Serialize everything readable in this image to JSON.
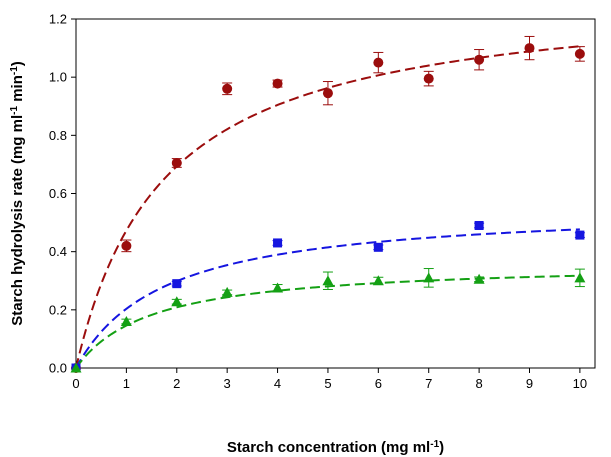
{
  "chart_data": {
    "type": "scatter",
    "xlabel": "Starch concentration (mg ml",
    "xlabel_sup": "-1",
    "xlabel_end": ")",
    "ylabel_main": "Starch hydrolysis rate (mg ml",
    "ylabel_sup1": "-1",
    "ylabel_mid": " min",
    "ylabel_sup2": "-1",
    "ylabel_end": ")",
    "xlim": [
      0,
      10.3
    ],
    "ylim": [
      0,
      1.2
    ],
    "xticks": [
      0,
      1,
      2,
      3,
      4,
      5,
      6,
      7,
      8,
      9,
      10
    ],
    "yticks": [
      0.0,
      0.2,
      0.4,
      0.6,
      0.8,
      1.0,
      1.2
    ],
    "ytick_labels": [
      "0.0",
      "0.2",
      "0.4",
      "0.6",
      "0.8",
      "1.0",
      "1.2"
    ],
    "grid": false,
    "series": [
      {
        "marker": "circle",
        "color": "#9b0d0d",
        "x": [
          0,
          1,
          2,
          3,
          4,
          5,
          6,
          7,
          8,
          9,
          10
        ],
        "y": [
          0.0,
          0.42,
          0.705,
          0.96,
          0.978,
          0.945,
          1.05,
          0.995,
          1.06,
          1.1,
          1.08
        ],
        "err": [
          0,
          0.02,
          0.015,
          0.02,
          0.012,
          0.04,
          0.035,
          0.025,
          0.035,
          0.04,
          0.025
        ],
        "fit": {
          "vmax": 1.3,
          "km": 1.75
        }
      },
      {
        "marker": "square",
        "color": "#1515e0",
        "x": [
          0,
          2,
          4,
          6,
          8,
          10
        ],
        "y": [
          0.0,
          0.29,
          0.43,
          0.415,
          0.49,
          0.457
        ],
        "err": [
          0,
          0.008,
          0.008,
          0.008,
          0.008,
          0.008
        ],
        "fit": {
          "vmax": 0.56,
          "km": 1.75
        }
      },
      {
        "marker": "triangle",
        "color": "#14a014",
        "x": [
          0,
          1,
          2,
          3,
          4,
          5,
          6,
          7,
          8,
          10
        ],
        "y": [
          0.0,
          0.16,
          0.228,
          0.26,
          0.275,
          0.3,
          0.3,
          0.31,
          0.305,
          0.31
        ],
        "err": [
          0,
          0.008,
          0.008,
          0.008,
          0.012,
          0.03,
          0.012,
          0.032,
          0.008,
          0.03
        ],
        "fit": {
          "vmax": 0.365,
          "km": 1.5
        }
      }
    ]
  }
}
